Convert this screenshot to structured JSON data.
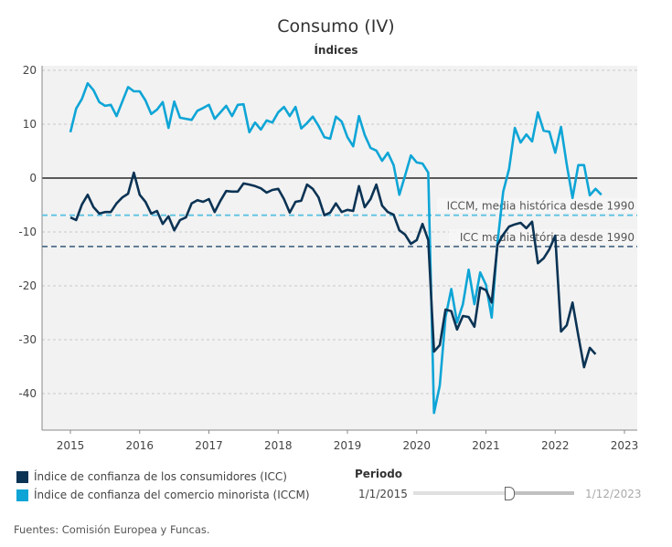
{
  "title": "Consumo (IV)",
  "subtitle": "Índices",
  "legend": [
    {
      "label": "Índice de confianza de los consumidores (ICC)",
      "color": "#0b3354"
    },
    {
      "label": "Índice de confianza del comercio minorista (ICCM)",
      "color": "#0ea5d6"
    }
  ],
  "filter": {
    "label": "Periodo",
    "from": "1/1/2015",
    "to": "1/12/2023"
  },
  "source": "Fuentes: Comisión Europea y Funcas.",
  "chart_data": {
    "type": "line",
    "title": "Consumo (IV)",
    "subtitle": "Índices",
    "x_start": "2015-01",
    "x_frequency": "monthly",
    "x_ticks": [
      "2015",
      "2016",
      "2017",
      "2018",
      "2019",
      "2020",
      "2021",
      "2022",
      "2023"
    ],
    "y_ticks": [
      20,
      10,
      0,
      -10,
      -20,
      -30,
      -40
    ],
    "ylim": [
      -47,
      22
    ],
    "grid": true,
    "series": [
      {
        "name": "Índice de confianza de los consumidores (ICC)",
        "color": "#0b3354",
        "values": [
          -7.3,
          -7.8,
          -4.9,
          -3.1,
          -5.4,
          -6.6,
          -6.3,
          -6.3,
          -4.7,
          -3.6,
          -2.9,
          1.0,
          -3.1,
          -4.4,
          -6.6,
          -6.1,
          -8.5,
          -7.1,
          -9.7,
          -7.8,
          -7.3,
          -4.7,
          -4.1,
          -4.4,
          -3.9,
          -6.3,
          -4.2,
          -2.4,
          -2.5,
          -2.5,
          -1.0,
          -1.2,
          -1.5,
          -1.9,
          -2.7,
          -2.2,
          -2.0,
          -3.9,
          -6.4,
          -4.4,
          -4.2,
          -1.2,
          -2.0,
          -3.6,
          -6.9,
          -6.4,
          -4.7,
          -6.3,
          -5.9,
          -6.1,
          -1.5,
          -5.4,
          -3.9,
          -1.2,
          -5.1,
          -6.3,
          -6.8,
          -9.7,
          -10.5,
          -12.2,
          -11.5,
          -8.5,
          -11.5,
          -32.2,
          -31.0,
          -24.4,
          -24.7,
          -28.1,
          -25.6,
          -25.8,
          -27.6,
          -20.3,
          -20.8,
          -23.1,
          -12.4,
          -10.5,
          -9.0,
          -8.6,
          -8.3,
          -9.3,
          -8.1,
          -15.8,
          -14.9,
          -13.2,
          -10.7,
          -28.5,
          -27.3,
          -23.1,
          -29.2,
          -35.1,
          -31.5,
          -32.7
        ]
      },
      {
        "name": "Índice de confianza del comercio minorista (ICCM)",
        "color": "#0ea5d6",
        "values": [
          8.5,
          12.9,
          14.7,
          17.6,
          16.3,
          14.1,
          13.4,
          13.6,
          11.5,
          14.2,
          16.9,
          16.1,
          16.1,
          14.4,
          11.9,
          12.7,
          14.1,
          9.3,
          14.2,
          11.2,
          11.0,
          10.8,
          12.5,
          13.0,
          13.6,
          11.0,
          12.2,
          13.4,
          11.5,
          13.6,
          13.7,
          8.5,
          10.3,
          9.0,
          10.7,
          10.3,
          12.2,
          13.2,
          11.5,
          13.2,
          9.2,
          10.2,
          11.4,
          9.7,
          7.6,
          7.3,
          11.4,
          10.5,
          7.6,
          5.9,
          11.5,
          8.0,
          5.6,
          5.1,
          3.2,
          4.7,
          2.4,
          -3.1,
          0.5,
          4.2,
          2.9,
          2.7,
          1.0,
          -43.6,
          -38.5,
          -25.8,
          -20.6,
          -26.8,
          -23.4,
          -17.0,
          -23.4,
          -17.5,
          -19.8,
          -25.9,
          -12.0,
          -2.5,
          1.7,
          9.3,
          6.6,
          8.1,
          6.8,
          12.2,
          8.8,
          8.6,
          4.7,
          9.5,
          2.5,
          -3.7,
          2.4,
          2.4,
          -3.2,
          -2.0,
          -3.1
        ]
      }
    ],
    "reference_lines": [
      {
        "label": "ICCM, media histórica desde 1990",
        "value": -6.9,
        "color": "#5bc3e3"
      },
      {
        "label": "ICC media histórica desde 1990",
        "value": -12.7,
        "color": "#5a7690"
      }
    ]
  }
}
